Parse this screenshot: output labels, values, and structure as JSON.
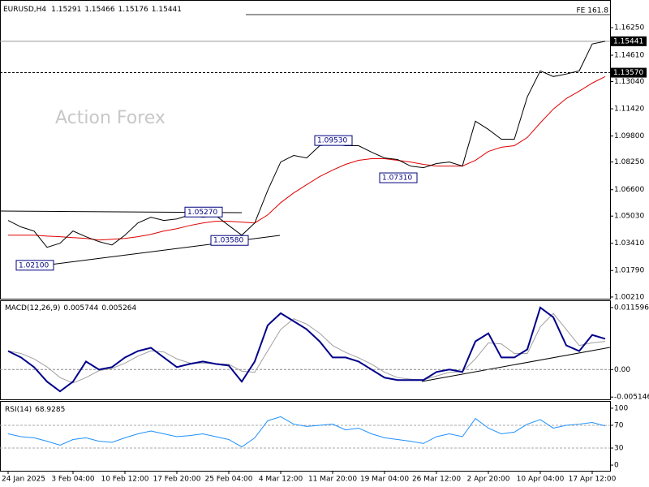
{
  "chart_data": {
    "type": "line",
    "symbol": "EURUSD,H4",
    "open": 1.15291,
    "high": 1.15466,
    "low": 1.15176,
    "watermark": "Action Forex",
    "categories": [
      "24 Jan 2025",
      null,
      null,
      null,
      null,
      "3 Feb 04:00",
      null,
      null,
      null,
      "10 Feb 12:00",
      null,
      null,
      null,
      "17 Feb 20:00",
      null,
      null,
      null,
      "25 Feb 04:00",
      null,
      null,
      null,
      "4 Mar 12:00",
      null,
      null,
      null,
      "11 Mar 20:00",
      null,
      null,
      null,
      "19 Mar 04:00",
      null,
      null,
      null,
      "26 Mar 12:00",
      null,
      null,
      null,
      "2 Apr 20:00",
      null,
      null,
      null,
      "10 Apr 04:00",
      null,
      null,
      null,
      "17 Apr 12:00",
      null
    ],
    "price": {
      "color": "#000000",
      "values": [
        1.0477,
        1.0438,
        1.0414,
        1.0317,
        1.0341,
        1.0414,
        1.038,
        1.0351,
        1.0331,
        1.0389,
        1.0462,
        1.0496,
        1.0477,
        1.0486,
        1.051,
        1.0496,
        1.0506,
        1.0447,
        1.0389,
        1.0462,
        1.0656,
        1.0825,
        1.0864,
        1.0849,
        1.0922,
        1.0932,
        1.0922,
        1.0922,
        1.0884,
        1.0849,
        1.084,
        1.0801,
        1.0791,
        1.0816,
        1.0825,
        1.0801,
        1.1068,
        1.1019,
        1.0961,
        1.0961,
        1.1213,
        1.1368,
        1.1334,
        1.1349,
        1.1368,
        1.1528,
        1.15441
      ]
    },
    "ma": {
      "color": "#e00000",
      "values": [
        1.0389,
        1.0389,
        1.0389,
        1.0384,
        1.038,
        1.0375,
        1.037,
        1.036,
        1.0365,
        1.037,
        1.038,
        1.0394,
        1.0414,
        1.0428,
        1.0447,
        1.0462,
        1.0472,
        1.0472,
        1.0467,
        1.0462,
        1.051,
        1.0583,
        1.0641,
        1.069,
        1.0738,
        1.0777,
        1.0811,
        1.0835,
        1.0845,
        1.0845,
        1.0835,
        1.0825,
        1.0811,
        1.0801,
        1.0801,
        1.0801,
        1.0835,
        1.0888,
        1.0913,
        1.0922,
        1.0971,
        1.1058,
        1.114,
        1.1203,
        1.1247,
        1.1295,
        1.1334
      ]
    },
    "ylim": [
      1.0011,
      1.1785
    ],
    "yticks": [
      {
        "value": 1.0021,
        "label": "1.00210"
      },
      {
        "value": 1.0179,
        "label": "1.01790"
      },
      {
        "value": 1.0341,
        "label": "1.03410"
      },
      {
        "value": 1.0503,
        "label": "1.05030"
      },
      {
        "value": 1.066,
        "label": "1.06600"
      },
      {
        "value": 1.0825,
        "label": "1.08250"
      },
      {
        "value": 1.098,
        "label": "1.09800"
      },
      {
        "value": 1.1142,
        "label": "1.11420"
      },
      {
        "value": 1.1304,
        "label": "1.13040"
      },
      {
        "value": 1.1461,
        "label": "1.14610"
      },
      {
        "value": 1.1625,
        "label": "1.16250"
      }
    ],
    "level": {
      "value": 1.1357,
      "label": "1.13570"
    },
    "fe_level": {
      "value": 1.1703,
      "label": "FE 161.8"
    },
    "annotations": [
      {
        "value": 1.021,
        "label": "1.02100",
        "at": 1
      },
      {
        "value": 1.0527,
        "label": "1.05270",
        "at": 14
      },
      {
        "value": 1.0358,
        "label": "1.03580",
        "at": 16
      },
      {
        "value": 1.0953,
        "label": "1.09530",
        "at": 24
      },
      {
        "value": 1.0731,
        "label": "1.07310",
        "at": 29
      }
    ],
    "macd": {
      "title": "MACD(12,26,9)",
      "macd_color": "#00008b",
      "signal_color": "#a0a0a0",
      "macd": [
        0.00346,
        0.00226,
        0.00045,
        -0.00226,
        -0.00407,
        -0.00226,
        0.00151,
        0,
        0.00045,
        0.00226,
        0.00346,
        0.00407,
        0.00226,
        0.00045,
        0.00105,
        0.00151,
        0.00105,
        0.00075,
        -0.00226,
        0.00151,
        0.00828,
        0.01054,
        0.00904,
        0.00753,
        0.00527,
        0.00226,
        0.00226,
        0.00151,
        0,
        -0.00151,
        -0.00196,
        -0.00196,
        -0.00196,
        -0.00045,
        0,
        -0.00045,
        0.00527,
        0.00678,
        0.00226,
        0.00226,
        0.00377,
        0.0116,
        0.00979,
        0.00452,
        0.00346,
        0.00648,
        0.005744
      ],
      "signal": [
        0.0035,
        0.003,
        0.002,
        0.0005,
        -0.0015,
        -0.0025,
        -0.0015,
        -0.0002,
        0.0002,
        0.0012,
        0.0025,
        0.0035,
        0.0033,
        0.002,
        0.0012,
        0.0012,
        0.0011,
        0.001,
        -0.0003,
        -0.0005,
        0.0035,
        0.0075,
        0.0095,
        0.0085,
        0.0068,
        0.0045,
        0.0032,
        0.0022,
        0.001,
        -0.0005,
        -0.0015,
        -0.0018,
        -0.0019,
        -0.0012,
        -0.0005,
        -0.0004,
        0.002,
        0.005,
        0.0048,
        0.003,
        0.003,
        0.008,
        0.0105,
        0.0075,
        0.0045,
        0.005,
        0.005264
      ],
      "ylim": [
        -0.00557,
        0.0128
      ],
      "yticks": [
        -0.005146,
        {
          "value": 0,
          "label": "0.00"
        },
        0.011596
      ]
    },
    "rsi": {
      "title": "RSI(14)",
      "color": "#1e90ff",
      "values": [
        55,
        50,
        48,
        42,
        35,
        45,
        48,
        42,
        40,
        48,
        55,
        60,
        55,
        50,
        52,
        55,
        50,
        45,
        32,
        48,
        78,
        85,
        72,
        68,
        70,
        72,
        62,
        65,
        55,
        48,
        45,
        42,
        38,
        50,
        55,
        50,
        82,
        65,
        55,
        58,
        72,
        80,
        65,
        70,
        72,
        75,
        68.9285
      ],
      "ylim": [
        -9.9,
        111.3
      ],
      "yticks": [
        0,
        30,
        70,
        100
      ],
      "levels": [
        30,
        70
      ]
    }
  }
}
